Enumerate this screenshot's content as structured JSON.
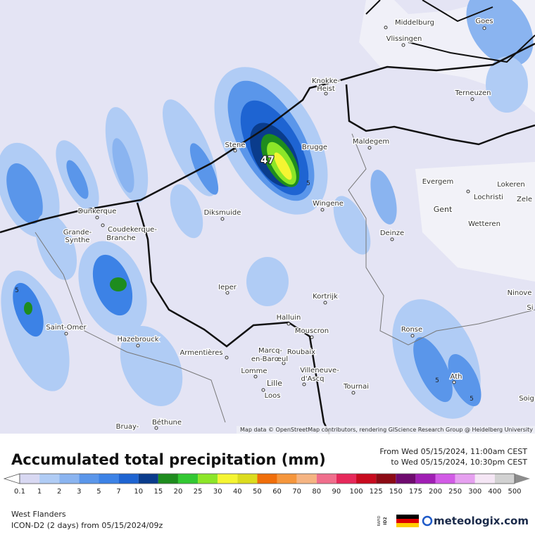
{
  "map": {
    "places": [
      "Middelburg",
      "Goes",
      "Vlissingen",
      "Knokke-",
      "Heist",
      "Terneuzen",
      "Stene",
      "Brugge",
      "Maldegem",
      "Evergem",
      "Lokeren",
      "Lochristi",
      "Zele",
      "Gent",
      "Wetteren",
      "Dunkerque",
      "Grande-",
      "Synthe",
      "Coudekerque-",
      "Branche",
      "Diksmuide",
      "Wingene",
      "Deinze",
      "Ieper",
      "Kortrijk",
      "Ninove",
      "Si",
      "Saint-Omer",
      "Halluin",
      "Mouscron",
      "Ronse",
      "Hazebrouck",
      "Armentières",
      "Marcq-",
      "en-Barœul",
      "Roubaix",
      "Lomme",
      "Villeneuve-",
      "d'Ascq",
      "Lille",
      "Loos",
      "Tournai",
      "Ath",
      "Soig",
      "Béthune",
      "Bruay-"
    ],
    "max_label": "47",
    "contour_labels": [
      "5",
      "5",
      "5",
      "5"
    ],
    "attribution": "Map data © OpenStreetMap contributors, rendering GIScience Research Group @ Heidelberg University"
  },
  "header": {
    "title": "Accumulated total precipitation (mm)",
    "from": "From Wed 05/15/2024, 11:00am CEST",
    "to": "to Wed 05/15/2024, 10:30pm CEST"
  },
  "legend": {
    "values": [
      0.1,
      1,
      2,
      3,
      5,
      7,
      10,
      15,
      20,
      25,
      30,
      40,
      50,
      60,
      70,
      80,
      90,
      100,
      125,
      150,
      175,
      200,
      250,
      300,
      400,
      500
    ],
    "colors": [
      "#d8d8f2",
      "#b0ccf5",
      "#8ab4f0",
      "#5a96ea",
      "#3c82e6",
      "#1e64d2",
      "#0a3c8c",
      "#1e8c1e",
      "#32c832",
      "#8ce628",
      "#f5f532",
      "#dcdc1e",
      "#f06e0a",
      "#f5963c",
      "#f5b482",
      "#f06e8c",
      "#e6285a",
      "#c80a1e",
      "#8c0a14",
      "#6e0a6e",
      "#a01eb4",
      "#d25ae6",
      "#e6a0f0",
      "#f5e6f5",
      "#d2d2d2",
      "#8c8c8c"
    ]
  },
  "footer": {
    "region": "West Flanders",
    "model": "ICON-D2 (2 days) from 05/15/2024/09z",
    "badge_top": "RAPID",
    "badge_bottom": "ID2",
    "brand": "meteologix.com"
  }
}
